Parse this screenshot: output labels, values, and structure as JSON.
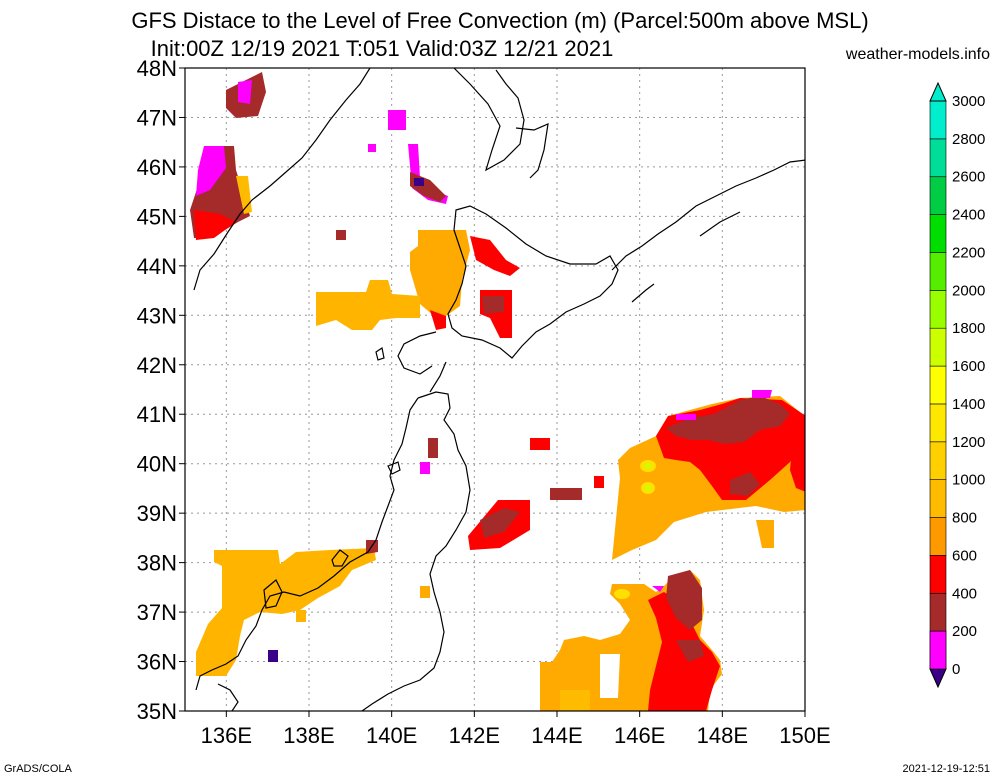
{
  "header": {
    "title_line1": "GFS Distace to the Level of Free Convection (m) (Parcel:500m above MSL)",
    "title_line2": "Init:00Z 12/19 2021 T:051 Valid:03Z 12/21 2021",
    "site": "weather-models.info"
  },
  "footer": {
    "left": "GrADS/COLA",
    "right": "2021-12-19-12:51"
  },
  "map": {
    "lon_range": [
      135,
      150
    ],
    "lat_range": [
      35,
      48
    ],
    "lat_labels": [
      "35N",
      "36N",
      "37N",
      "38N",
      "39N",
      "40N",
      "41N",
      "42N",
      "43N",
      "44N",
      "45N",
      "46N",
      "47N",
      "48N"
    ],
    "lon_labels": [
      "136E",
      "138E",
      "140E",
      "142E",
      "144E",
      "146E",
      "148E",
      "150E"
    ],
    "lon_label_values": [
      136,
      138,
      140,
      142,
      144,
      146,
      148,
      150
    ]
  },
  "colorbar": {
    "labels": [
      "0",
      "200",
      "400",
      "600",
      "800",
      "1000",
      "1200",
      "1400",
      "1600",
      "1800",
      "2000",
      "2200",
      "2400",
      "2600",
      "2800",
      "3000"
    ],
    "colors": [
      "#3a0088",
      "#ff00ff",
      "#a52a2a",
      "#ff0000",
      "#ff9900",
      "#ffbb00",
      "#ffd000",
      "#ffe800",
      "#ffff00",
      "#ccff00",
      "#99ff00",
      "#55ee00",
      "#00dd00",
      "#00cc44",
      "#00dd99",
      "#00eecc"
    ]
  }
}
